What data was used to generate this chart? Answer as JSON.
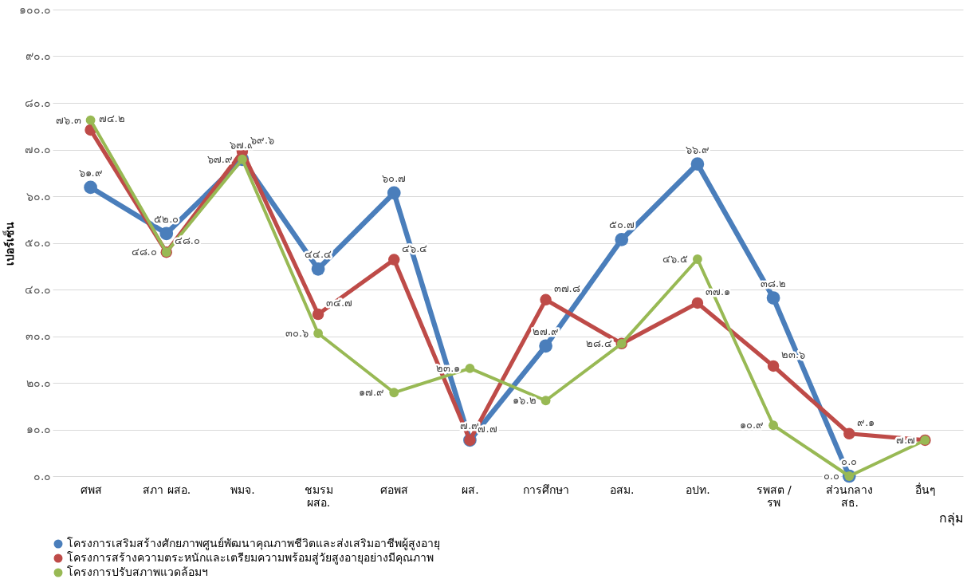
{
  "chart_data": {
    "type": "line",
    "xlabel": "กลุ่ม",
    "ylabel": "เปอร์เซ็น",
    "categories": [
      "ศพส",
      "สภา ผสอ.",
      "พมจ.",
      "ชมรม\nผสอ.",
      "ศอพส",
      "ผส.",
      "การศึกษา",
      "อสม.",
      "อปท.",
      "รพสต /\nรพ",
      "ส่วนกลาง\nสธ.",
      "อื่นๆ"
    ],
    "series": [
      {
        "name": "โครงการเสริมสร้างศักยภาพศูนย์พัฒนาคุณภาพชีวิตและส่งเสริมอาชีพผู้สูงอายุ",
        "color": "#4a7ebb",
        "values": [
          61.9,
          52.0,
          67.9,
          44.4,
          60.7,
          7.7,
          27.9,
          50.7,
          66.9,
          38.2,
          0.0,
          null
        ],
        "value_labels": [
          "๖๑.๙",
          "๕๒.๐",
          "๖๗.๙",
          "๔๔.๔",
          "๖๐.๗",
          "๗.๗",
          "๒๗.๙",
          "๕๐.๗",
          "๖๖.๙",
          "๓๘.๒",
          "๐.๐",
          null
        ]
      },
      {
        "name": "โครงการสร้างความตระหนักและเตรียมความพร้อมสู่วัยสูงอายุอย่างมีคุณภาพ",
        "color": "#be4b48",
        "values": [
          74.2,
          48.0,
          69.6,
          34.7,
          46.4,
          7.7,
          37.8,
          28.4,
          37.1,
          23.6,
          9.1,
          7.7
        ],
        "value_labels": [
          "๗๔.๒",
          "๔๘.๐",
          "๖๙.๖",
          "๓๔.๗",
          "๔๖.๔",
          "๗.๗",
          "๓๗.๘",
          null,
          "๓๗.๑",
          "๒๓.๖",
          "๙.๑",
          null
        ]
      },
      {
        "name": "โครงการปรับสภาพแวดล้อมฯ",
        "color": "#98b954",
        "values": [
          76.3,
          48.0,
          67.9,
          30.6,
          17.9,
          23.1,
          16.2,
          28.4,
          46.5,
          10.9,
          0.0,
          7.7
        ],
        "value_labels": [
          "๗๖.๓",
          "๔๘.๐",
          "๖๗.๙",
          "๓๐.๖",
          "๑๗.๙",
          "๒๓.๑",
          "๑๖.๒",
          "๒๘.๔",
          "๔๖.๕",
          "๑๐.๙",
          "๐.๐",
          "๗.๗"
        ]
      }
    ],
    "ylim": [
      0,
      100
    ],
    "yticks": [
      {
        "value": 0,
        "label": "๐.๐"
      },
      {
        "value": 10,
        "label": "๑๐.๐"
      },
      {
        "value": 20,
        "label": "๒๐.๐"
      },
      {
        "value": 30,
        "label": "๓๐.๐"
      },
      {
        "value": 40,
        "label": "๔๐.๐"
      },
      {
        "value": 50,
        "label": "๕๐.๐"
      },
      {
        "value": 60,
        "label": "๖๐.๐"
      },
      {
        "value": 70,
        "label": "๗๐.๐"
      },
      {
        "value": 80,
        "label": "๘๐.๐"
      },
      {
        "value": 90,
        "label": "๙๐.๐"
      },
      {
        "value": 100,
        "label": "๑๐๐.๐"
      }
    ],
    "grid": "y",
    "legend": "bottom",
    "marker": "circle",
    "line_style": "solid"
  }
}
